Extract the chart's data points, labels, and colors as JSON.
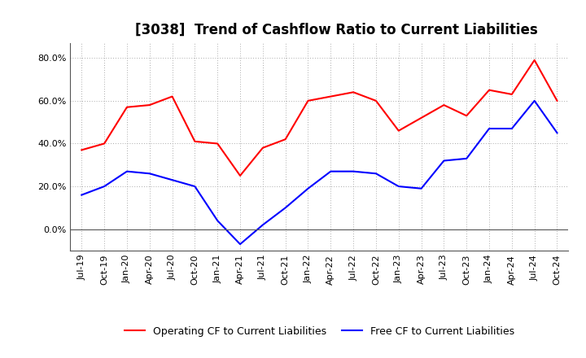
{
  "title": "[3038]  Trend of Cashflow Ratio to Current Liabilities",
  "x_labels": [
    "Jul-19",
    "Oct-19",
    "Jan-20",
    "Apr-20",
    "Jul-20",
    "Oct-20",
    "Jan-21",
    "Apr-21",
    "Jul-21",
    "Oct-21",
    "Jan-22",
    "Apr-22",
    "Jul-22",
    "Oct-22",
    "Jan-23",
    "Apr-23",
    "Jul-23",
    "Oct-23",
    "Jan-24",
    "Apr-24",
    "Jul-24",
    "Oct-24"
  ],
  "operating_cf": [
    0.37,
    0.4,
    0.57,
    0.58,
    0.62,
    0.41,
    0.4,
    0.25,
    0.38,
    0.42,
    0.6,
    0.62,
    0.64,
    0.6,
    0.46,
    0.52,
    0.58,
    0.53,
    0.65,
    0.63,
    0.79,
    0.6
  ],
  "free_cf": [
    0.16,
    0.2,
    0.27,
    0.26,
    0.23,
    0.2,
    0.04,
    -0.07,
    0.02,
    0.1,
    0.19,
    0.27,
    0.27,
    0.26,
    0.2,
    0.19,
    0.32,
    0.33,
    0.47,
    0.47,
    0.6,
    0.45
  ],
  "operating_color": "#FF0000",
  "free_color": "#0000FF",
  "ylim": [
    -0.1,
    0.87
  ],
  "yticks": [
    0.0,
    0.2,
    0.4,
    0.6,
    0.8
  ],
  "grid_color": "#aaaaaa",
  "background_color": "#ffffff",
  "legend_operating": "Operating CF to Current Liabilities",
  "legend_free": "Free CF to Current Liabilities",
  "title_fontsize": 12,
  "axis_fontsize": 8,
  "legend_fontsize": 9,
  "line_width": 1.5
}
